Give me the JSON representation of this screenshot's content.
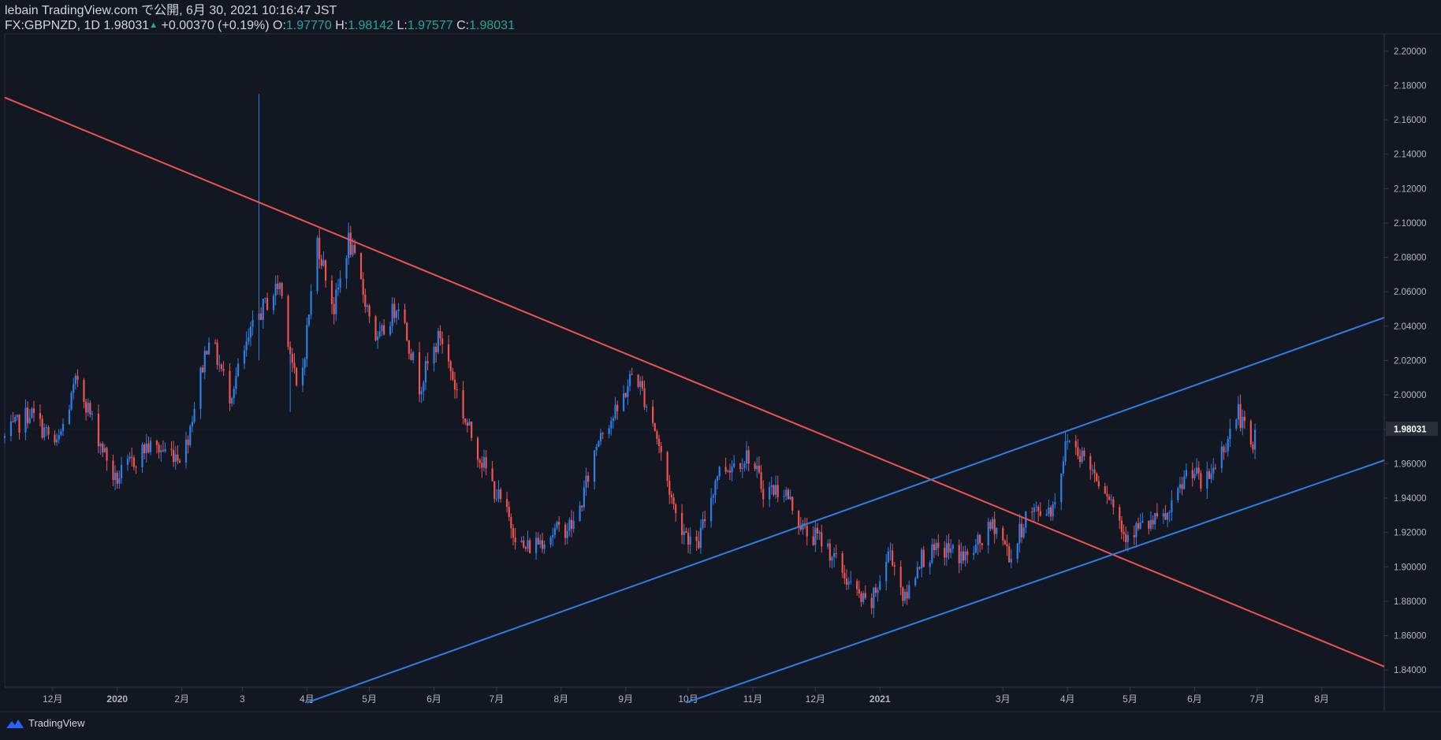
{
  "header": {
    "line1": "lebain TradingView.com で公開, 6月 30, 2021 10:16:47 JST",
    "symbol": "FX:GBPNZD, 1D",
    "last": "1.98031",
    "arrow": "▲",
    "change": "+0.00370 (+0.19%)",
    "o_label": "O:",
    "o_value": "1.97770",
    "h_label": "H:",
    "h_value": "1.98142",
    "l_label": "L:",
    "l_value": "1.97577",
    "c_label": "C:",
    "c_value": "1.98031"
  },
  "footer": {
    "brand": "TradingView"
  },
  "colors": {
    "background": "#131722",
    "up": "#2e7ee6",
    "down": "#ef5350",
    "resistance_line": "#ef5350",
    "channel_line": "#2e7ee6",
    "price_tag_bg": "#2a2e39"
  },
  "chart_data": {
    "type": "candlestick",
    "symbol": "FX:GBPNZD",
    "interval": "1D",
    "ylim": [
      1.83,
      2.21
    ],
    "price_ticks": [
      "2.20000",
      "2.18000",
      "2.16000",
      "2.14000",
      "2.12000",
      "2.10000",
      "2.08000",
      "2.06000",
      "2.04000",
      "2.02000",
      "2.00000",
      "1.98000",
      "1.96000",
      "1.94000",
      "1.92000",
      "1.90000",
      "1.88000",
      "1.86000",
      "1.84000"
    ],
    "current_price": "1.98031",
    "time_ticks": [
      {
        "label": "12月",
        "date": "2019-12-01"
      },
      {
        "label": "2020",
        "date": "2020-01-01"
      },
      {
        "label": "2月",
        "date": "2020-02-01"
      },
      {
        "label": "3",
        "date": "2020-03-01"
      },
      {
        "label": "4月",
        "date": "2020-04-01"
      },
      {
        "label": "5月",
        "date": "2020-05-01"
      },
      {
        "label": "6月",
        "date": "2020-06-01"
      },
      {
        "label": "7月",
        "date": "2020-07-01"
      },
      {
        "label": "8月",
        "date": "2020-08-01"
      },
      {
        "label": "9月",
        "date": "2020-09-01"
      },
      {
        "label": "10月",
        "date": "2020-10-01"
      },
      {
        "label": "11月",
        "date": "2020-11-01"
      },
      {
        "label": "12月",
        "date": "2020-12-01"
      },
      {
        "label": "2021",
        "date": "2021-01-01"
      },
      {
        "label": "3月",
        "date": "2021-03-01"
      },
      {
        "label": "4月",
        "date": "2021-04-01"
      },
      {
        "label": "5月",
        "date": "2021-05-01"
      },
      {
        "label": "6月",
        "date": "2021-06-01"
      },
      {
        "label": "7月",
        "date": "2021-07-01"
      },
      {
        "label": "8月",
        "date": "2021-08-01"
      }
    ],
    "x_range": [
      "2019-11-08",
      "2021-08-31"
    ],
    "path": [
      [
        "2019-11-08",
        1.975
      ],
      [
        "2019-11-20",
        1.99
      ],
      [
        "2019-12-03",
        1.97
      ],
      [
        "2019-12-13",
        2.01
      ],
      [
        "2019-12-20",
        1.985
      ],
      [
        "2019-12-31",
        1.95
      ],
      [
        "2020-01-15",
        1.97
      ],
      [
        "2020-02-02",
        1.965
      ],
      [
        "2020-02-14",
        2.035
      ],
      [
        "2020-02-24",
        2.0
      ],
      [
        "2020-03-08",
        2.045
      ],
      [
        "2020-03-19",
        2.065
      ],
      [
        "2020-03-28",
        1.995
      ],
      [
        "2020-04-06",
        2.09
      ],
      [
        "2020-04-14",
        2.05
      ],
      [
        "2020-04-21",
        2.09
      ],
      [
        "2020-05-05",
        2.03
      ],
      [
        "2020-05-15",
        2.055
      ],
      [
        "2020-05-25",
        2.005
      ],
      [
        "2020-06-04",
        2.035
      ],
      [
        "2020-06-16",
        1.985
      ],
      [
        "2020-06-28",
        1.95
      ],
      [
        "2020-07-14",
        1.91
      ],
      [
        "2020-07-28",
        1.92
      ],
      [
        "2020-08-08",
        1.925
      ],
      [
        "2020-08-20",
        1.98
      ],
      [
        "2020-08-28",
        1.99
      ],
      [
        "2020-09-05",
        2.015
      ],
      [
        "2020-09-14",
        1.985
      ],
      [
        "2020-09-25",
        1.93
      ],
      [
        "2020-10-05",
        1.91
      ],
      [
        "2020-10-15",
        1.955
      ],
      [
        "2020-10-30",
        1.965
      ],
      [
        "2020-11-06",
        1.945
      ],
      [
        "2020-11-16",
        1.945
      ],
      [
        "2020-11-26",
        1.92
      ],
      [
        "2020-12-05",
        1.915
      ],
      [
        "2020-12-20",
        1.885
      ],
      [
        "2020-12-27",
        1.875
      ],
      [
        "2021-01-06",
        1.91
      ],
      [
        "2021-01-13",
        1.88
      ],
      [
        "2021-01-20",
        1.905
      ],
      [
        "2021-02-02",
        1.91
      ],
      [
        "2021-02-12",
        1.905
      ],
      [
        "2021-02-25",
        1.925
      ],
      [
        "2021-03-05",
        1.905
      ],
      [
        "2021-03-12",
        1.93
      ],
      [
        "2021-03-25",
        1.935
      ],
      [
        "2021-04-01",
        1.975
      ],
      [
        "2021-04-08",
        1.965
      ],
      [
        "2021-04-20",
        1.945
      ],
      [
        "2021-04-28",
        1.92
      ],
      [
        "2021-05-12",
        1.925
      ],
      [
        "2021-05-20",
        1.93
      ],
      [
        "2021-05-30",
        1.96
      ],
      [
        "2021-06-05",
        1.945
      ],
      [
        "2021-06-15",
        1.97
      ],
      [
        "2021-06-22",
        1.99
      ],
      [
        "2021-06-29",
        1.965
      ],
      [
        "2021-06-30",
        1.98
      ]
    ],
    "spikes": [
      {
        "date": "2020-03-09",
        "high": 2.175,
        "low": 2.02
      },
      {
        "date": "2020-03-24",
        "low": 1.99
      }
    ],
    "trendlines": [
      {
        "name": "descending-resistance",
        "color": "#ef5350",
        "from": [
          "2019-11-08",
          2.173
        ],
        "to": [
          "2021-08-31",
          1.842
        ]
      },
      {
        "name": "channel-upper",
        "color": "#2e7ee6",
        "from": [
          "2020-04-01",
          1.821
        ],
        "to": [
          "2021-08-31",
          2.045
        ]
      },
      {
        "name": "channel-lower",
        "color": "#2e7ee6",
        "from": [
          "2020-09-30",
          1.821
        ],
        "to": [
          "2021-08-31",
          1.962
        ]
      }
    ]
  }
}
